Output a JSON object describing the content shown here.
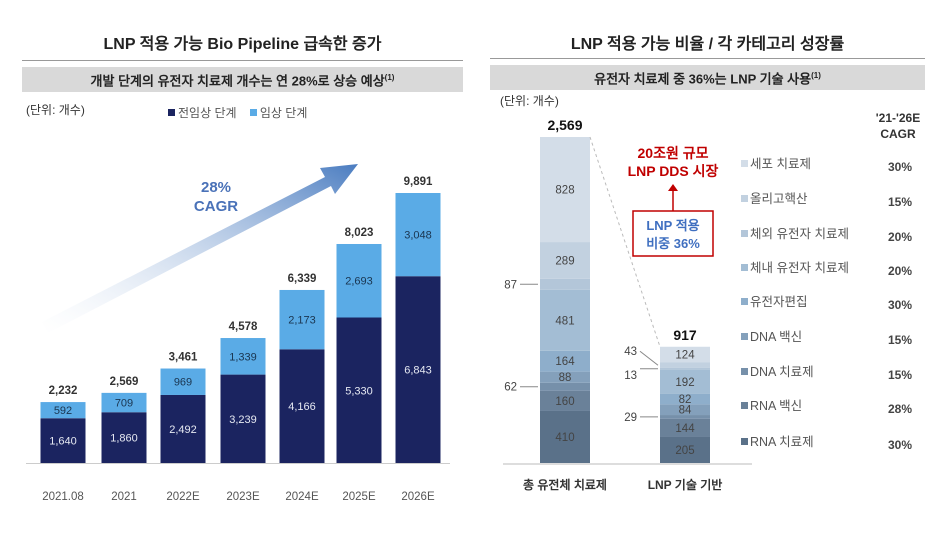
{
  "left": {
    "title": "LNP 적용 가능 Bio Pipeline 급속한 증가",
    "banner": "개발 단계의 유전자 치료제 개수는 연 28%로 상승 예상",
    "banner_note": "(1)",
    "unit": "(단위: 개수)",
    "cagr_label": [
      "28%",
      "CAGR"
    ],
    "chart_data": {
      "type": "bar",
      "stacked": true,
      "categories": [
        "2021.08",
        "2021",
        "2022E",
        "2023E",
        "2024E",
        "2025E",
        "2026E"
      ],
      "series": [
        {
          "name": "전임상 단계",
          "color": "#1b2460",
          "values": [
            1640,
            1860,
            2492,
            3239,
            4166,
            5330,
            6843
          ]
        },
        {
          "name": "임상 단계",
          "color": "#5aabe6",
          "values": [
            592,
            709,
            969,
            1339,
            2173,
            2693,
            3048
          ]
        }
      ],
      "totals": [
        "2,232",
        "2,569",
        "3,461",
        "4,578",
        "6,339",
        "8,023",
        "9,891"
      ],
      "legend": "top",
      "ylim": [
        0,
        10000
      ]
    }
  },
  "right": {
    "title": "LNP 적용 가능 비율 / 각 카테고리 성장률",
    "banner": "유전자 치료제 중 36%는 LNP 기술 사용",
    "banner_note": "(1)",
    "unit": "(단위: 개수)",
    "callout_red": [
      "20조원 규모",
      "LNP DDS 시장"
    ],
    "callout_box": [
      "LNP 적용",
      "비중 36%"
    ],
    "cagr_header": [
      "'21-'26E",
      "CAGR"
    ],
    "chart_data": {
      "type": "bar",
      "stacked": true,
      "categories": [
        "총 유전체 치료제",
        "LNP 기술 기반"
      ],
      "totals": [
        "2,569",
        "917"
      ],
      "series": [
        {
          "name": "RNA 치료제",
          "cagr": "30%",
          "color": "#5a7189",
          "values": [
            410,
            205
          ]
        },
        {
          "name": "RNA 백신",
          "cagr": "28%",
          "color": "#6a8199",
          "values": [
            160,
            144
          ]
        },
        {
          "name": "DNA 치료제",
          "cagr": "15%",
          "color": "#7690aa",
          "values": [
            62,
            29
          ]
        },
        {
          "name": "DNA 백신",
          "cagr": "15%",
          "color": "#84a0bb",
          "values": [
            88,
            84
          ]
        },
        {
          "name": "유전자편집",
          "cagr": "30%",
          "color": "#8eaecb",
          "values": [
            164,
            82
          ]
        },
        {
          "name": "체내 유전자 치료제",
          "cagr": "20%",
          "color": "#a3bdd4",
          "values": [
            481,
            192
          ]
        },
        {
          "name": "체외 유전자 치료제",
          "cagr": "20%",
          "color": "#b3c6d9",
          "values": [
            87,
            13
          ]
        },
        {
          "name": "올리고핵산",
          "cagr": "15%",
          "color": "#c2d1e0",
          "values": [
            289,
            43
          ]
        },
        {
          "name": "세포 치료제",
          "cagr": "30%",
          "color": "#d3dde8",
          "values": [
            828,
            124
          ]
        }
      ],
      "legend": "right"
    }
  }
}
